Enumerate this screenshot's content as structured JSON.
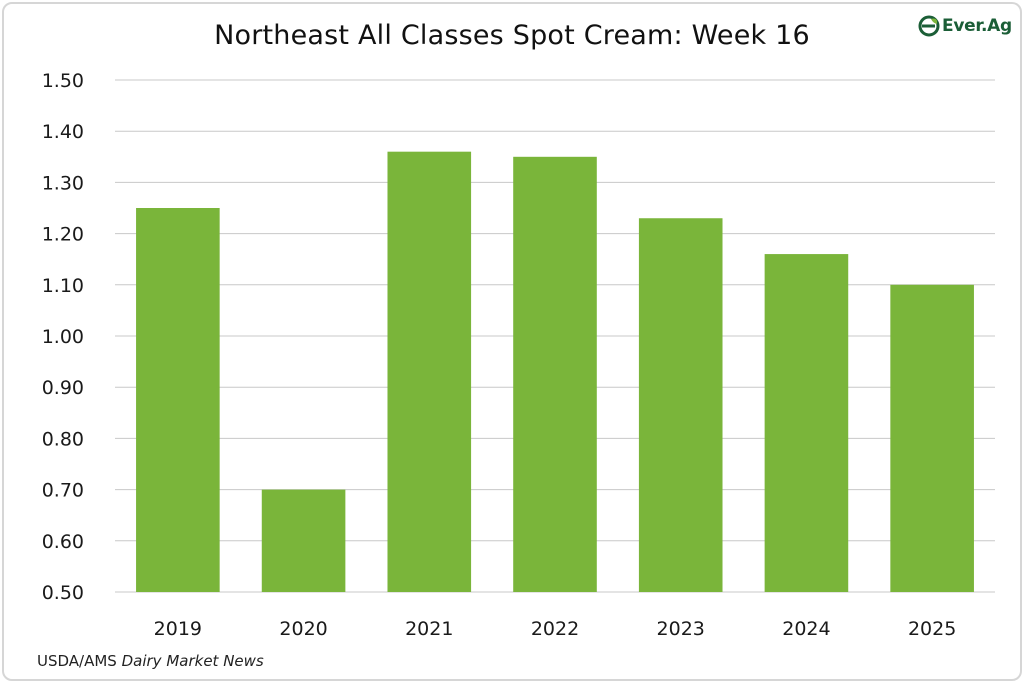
{
  "chart_data": {
    "type": "bar",
    "title": "Northeast All Classes Spot Cream: Week 16",
    "xlabel": "",
    "ylabel": "",
    "categories": [
      "2019",
      "2020",
      "2021",
      "2022",
      "2023",
      "2024",
      "2025"
    ],
    "values": [
      1.25,
      0.7,
      1.36,
      1.35,
      1.23,
      1.16,
      1.1
    ],
    "ylim": [
      0.5,
      1.5
    ],
    "yticks": [
      "0.50",
      "0.60",
      "0.70",
      "0.80",
      "0.90",
      "1.00",
      "1.10",
      "1.20",
      "1.30",
      "1.40",
      "1.50"
    ],
    "grid": true,
    "bar_color": "#7ab53a",
    "gridline_color": "#c8c8c8"
  },
  "logo": {
    "text": "Ever.Ag",
    "icon": "ever-ag-leaf-icon",
    "color": "#1b5e37"
  },
  "source": {
    "prefix": "USDA/AMS ",
    "italic": "Dairy Market News"
  }
}
